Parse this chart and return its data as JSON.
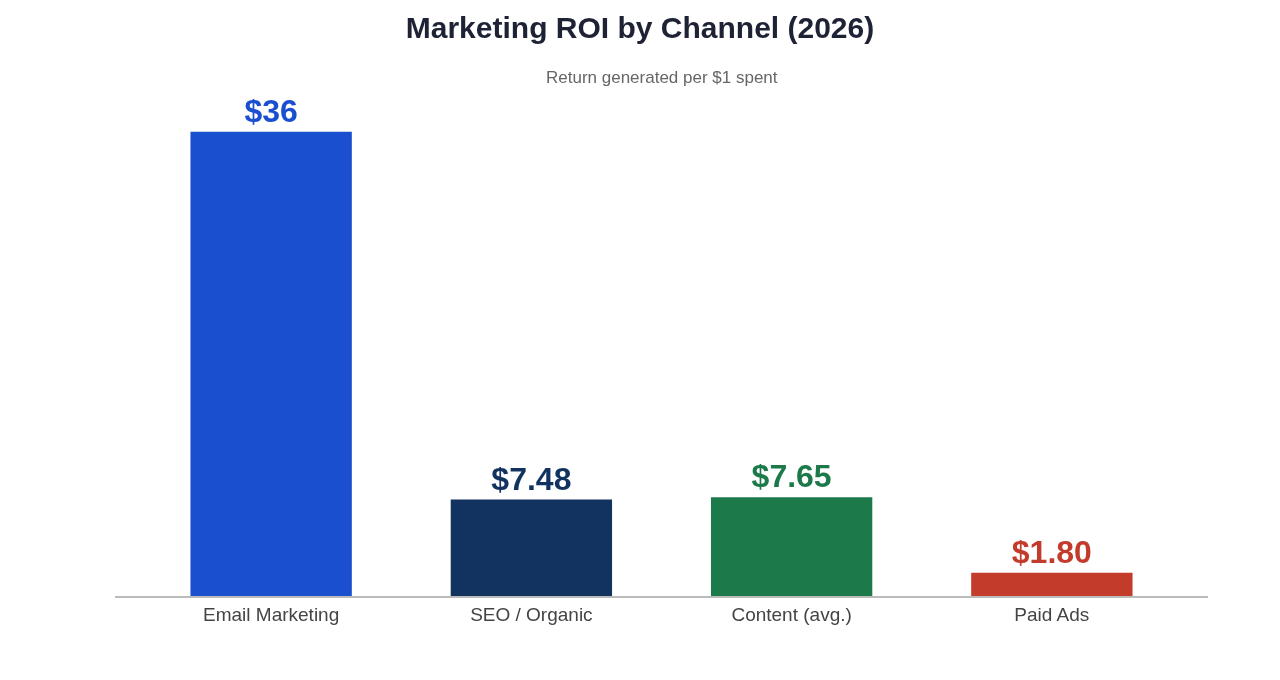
{
  "chart_data": {
    "type": "bar",
    "title": "Marketing ROI by Channel (2026)",
    "subtitle": "Return generated per $1 spent",
    "categories": [
      "Email Marketing",
      "SEO / Organic",
      "Content (avg.)",
      "Paid Ads"
    ],
    "values": [
      36,
      7.48,
      7.65,
      1.8
    ],
    "value_labels": [
      "$36",
      "$7.48",
      "$7.65",
      "$1.80"
    ],
    "colors": [
      "#1a4fcf",
      "#12335f",
      "#1c7a4a",
      "#c23b2b"
    ],
    "legend": false,
    "tick_labels": "x"
  }
}
